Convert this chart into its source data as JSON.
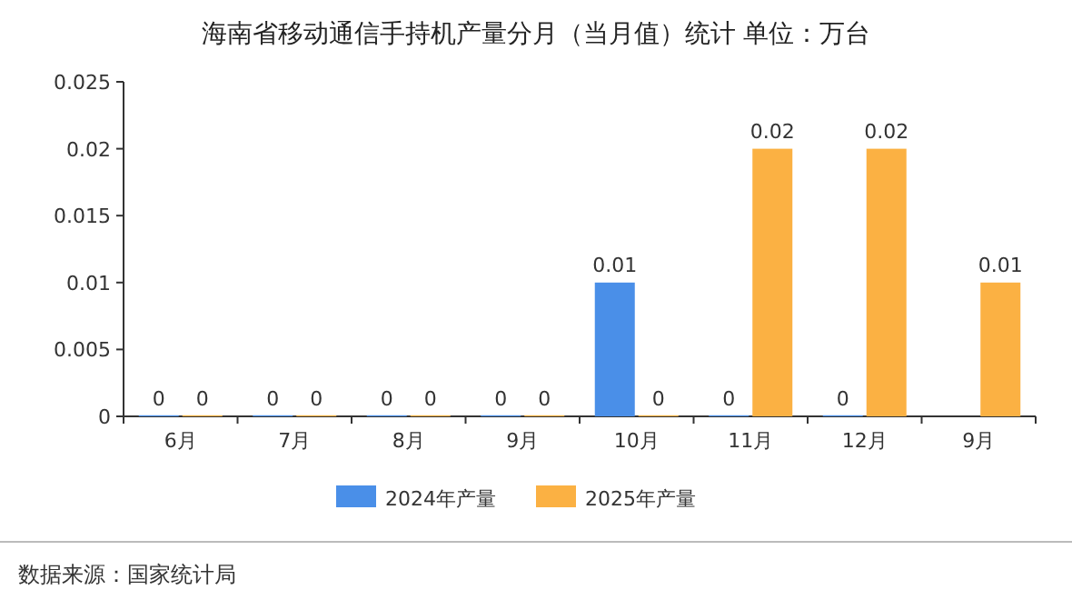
{
  "chart_data": {
    "type": "bar",
    "title": "海南省移动通信手持机产量分月（当月值）统计  单位：万台",
    "categories": [
      "6月",
      "7月",
      "8月",
      "9月",
      "10月",
      "11月",
      "12月",
      "9月"
    ],
    "series": [
      {
        "name": "2024年产量",
        "color": "#4a8fe8",
        "values": [
          0,
          0,
          0,
          0,
          0.01,
          0,
          0,
          null
        ]
      },
      {
        "name": "2025年产量",
        "color": "#fbb143",
        "values": [
          0,
          0,
          0,
          0,
          0,
          0.02,
          0.02,
          0.01
        ]
      }
    ],
    "ylim": [
      0,
      0.025
    ],
    "yticks": [
      0,
      0.005,
      0.01,
      0.015,
      0.02,
      0.025
    ],
    "data_labels": true,
    "grid": false,
    "legend": "bottom",
    "annotations": [
      "数据来源：国家统计局"
    ]
  }
}
